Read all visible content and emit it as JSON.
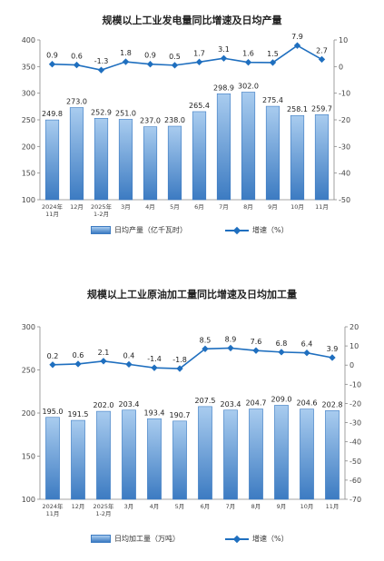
{
  "colors": {
    "bar_fill_top": "#a9ccef",
    "bar_fill_bottom": "#3c7bc2",
    "bar_stroke": "#3c7bc2",
    "line": "#1f6fbf",
    "axis_text": "#444444",
    "label_text": "#222222"
  },
  "chart_data": [
    {
      "type": "bar+line",
      "title": "规模以上工业发电量同比增速及日均产量",
      "categories": [
        [
          "2024年",
          "11月"
        ],
        [
          "12月"
        ],
        [
          "2025年",
          "1-2月"
        ],
        [
          "3月"
        ],
        [
          "4月"
        ],
        [
          "5月"
        ],
        [
          "6月"
        ],
        [
          "7月"
        ],
        [
          "8月"
        ],
        [
          "9月"
        ],
        [
          "10月"
        ],
        [
          "11月"
        ]
      ],
      "series": [
        {
          "name": "日均产量（亿千瓦时）",
          "kind": "bar",
          "axis": "left",
          "values": [
            249.8,
            273.0,
            252.9,
            251.0,
            237.0,
            238.0,
            265.4,
            298.9,
            302.0,
            275.4,
            258.1,
            259.7
          ],
          "labels": [
            "249.8",
            "273.0",
            "252.9",
            "251.0",
            "237.0",
            "238.0",
            "265.4",
            "298.9",
            "302.0",
            "275.4",
            "258.1",
            "259.7"
          ]
        },
        {
          "name": "增速（%）",
          "kind": "line",
          "axis": "right",
          "values": [
            0.9,
            0.6,
            -1.3,
            1.8,
            0.9,
            0.5,
            1.7,
            3.1,
            1.6,
            1.5,
            7.9,
            2.7
          ],
          "labels": [
            "0.9",
            "0.6",
            "-1.3",
            "1.8",
            "0.9",
            "0.5",
            "1.7",
            "3.1",
            "1.6",
            "1.5",
            "7.9",
            "2.7"
          ]
        }
      ],
      "y_left": {
        "min": 100,
        "max": 400,
        "step": 50
      },
      "y_right": {
        "min": -50,
        "max": 10,
        "step": 10
      },
      "grid": false,
      "legend_position": "bottom"
    },
    {
      "type": "bar+line",
      "title": "规模以上工业原油加工量同比增速及日均加工量",
      "categories": [
        [
          "2024年",
          "11月"
        ],
        [
          "12月"
        ],
        [
          "2025年",
          "1-2月"
        ],
        [
          "3月"
        ],
        [
          "4月"
        ],
        [
          "5月"
        ],
        [
          "6月"
        ],
        [
          "7月"
        ],
        [
          "8月"
        ],
        [
          "9月"
        ],
        [
          "10月"
        ],
        [
          "11月"
        ]
      ],
      "series": [
        {
          "name": "日均加工量（万吨）",
          "kind": "bar",
          "axis": "left",
          "values": [
            195.0,
            191.5,
            202.0,
            203.4,
            193.4,
            190.7,
            207.5,
            203.4,
            204.7,
            209.0,
            204.6,
            202.8
          ],
          "labels": [
            "195.0",
            "191.5",
            "202.0",
            "203.4",
            "193.4",
            "190.7",
            "207.5",
            "203.4",
            "204.7",
            "209.0",
            "204.6",
            "202.8"
          ]
        },
        {
          "name": "增速（%）",
          "kind": "line",
          "axis": "right",
          "values": [
            0.2,
            0.6,
            2.1,
            0.4,
            -1.4,
            -1.8,
            8.5,
            8.9,
            7.6,
            6.8,
            6.4,
            3.9
          ],
          "labels": [
            "0.2",
            "0.6",
            "2.1",
            "0.4",
            "-1.4",
            "-1.8",
            "8.5",
            "8.9",
            "7.6",
            "6.8",
            "6.4",
            "3.9"
          ]
        }
      ],
      "y_left": {
        "min": 100,
        "max": 300,
        "step": 50
      },
      "y_right": {
        "min": -70,
        "max": 20,
        "step": 10
      },
      "grid": false,
      "legend_position": "bottom"
    }
  ]
}
